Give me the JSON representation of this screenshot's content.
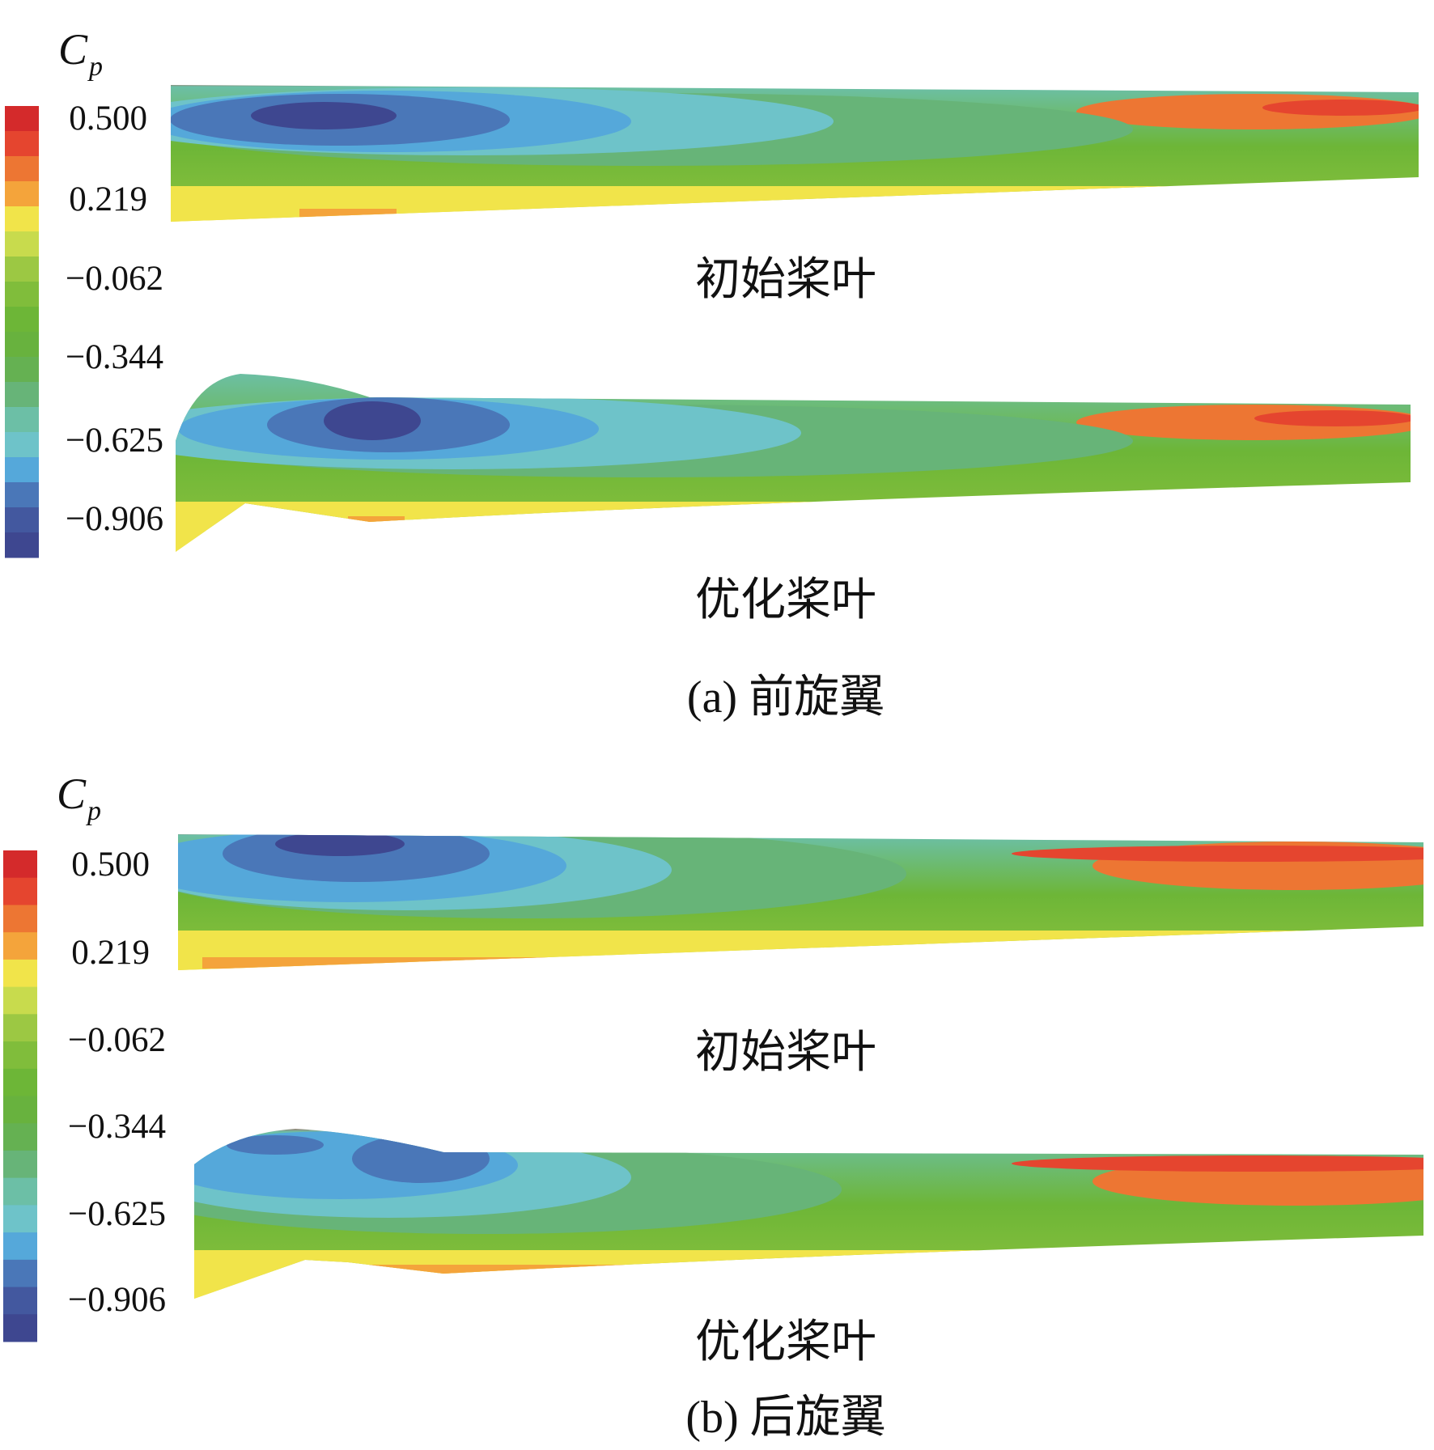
{
  "chart_data": {
    "type": "heatmap",
    "variable_label": "C",
    "variable_subscript": "p",
    "colorbar": {
      "ticks": [
        "0.500",
        "0.219",
        "−0.062",
        "−0.344",
        "−0.625",
        "−0.906"
      ],
      "range": [
        -1.0,
        0.6
      ],
      "colors": [
        "#d42a2b",
        "#e5452f",
        "#ed7633",
        "#f4a43b",
        "#f1e44a",
        "#c8db4d",
        "#9cc843",
        "#80bd3b",
        "#6db637",
        "#68b23e",
        "#65b152",
        "#67b478",
        "#6cbfa6",
        "#6ec3c9",
        "#55a8da",
        "#4a77b8",
        "#43589f",
        "#3e4790"
      ]
    },
    "panels": [
      {
        "caption": "(a) 前旋翼",
        "blades": [
          {
            "label": "初始桨叶"
          },
          {
            "label": "优化桨叶"
          }
        ]
      },
      {
        "caption": "(b) 后旋翼",
        "blades": [
          {
            "label": "初始桨叶"
          },
          {
            "label": "优化桨叶"
          }
        ]
      }
    ]
  }
}
